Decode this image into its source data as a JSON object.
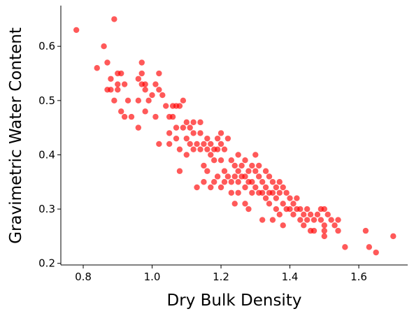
{
  "chart_data": {
    "type": "scatter",
    "x_label": "Dry Bulk Density",
    "y_label": "Gravimetric Water Content",
    "color": "#ff0000",
    "xlim": [
      0.735,
      1.742
    ],
    "ylim": [
      0.197,
      0.675
    ],
    "xticks": [
      {
        "value": 0.8,
        "label": "0.8"
      },
      {
        "value": 1.0,
        "label": "1.0"
      },
      {
        "value": 1.2,
        "label": "1.2"
      },
      {
        "value": 1.4,
        "label": "1.4"
      },
      {
        "value": 1.6,
        "label": "1.6"
      }
    ],
    "yticks": [
      0.2,
      0.3,
      0.4,
      0.5,
      0.6
    ],
    "x": [
      0.78,
      0.84,
      0.86,
      0.87,
      0.89,
      0.87,
      0.88,
      0.88,
      0.89,
      0.9,
      0.9,
      0.91,
      0.9,
      0.91,
      0.92,
      0.92,
      0.93,
      0.94,
      0.96,
      0.96,
      0.96,
      0.97,
      0.97,
      0.97,
      0.98,
      0.98,
      0.98,
      0.99,
      1.0,
      1.01,
      1.01,
      1.02,
      1.02,
      1.02,
      1.03,
      1.04,
      1.05,
      1.05,
      1.05,
      1.06,
      1.06,
      1.07,
      1.07,
      1.07,
      1.08,
      1.08,
      1.08,
      1.09,
      1.09,
      1.1,
      1.1,
      1.1,
      1.11,
      1.11,
      1.12,
      1.12,
      1.12,
      1.13,
      1.13,
      1.14,
      1.14,
      1.14,
      1.15,
      1.15,
      1.15,
      1.16,
      1.16,
      1.16,
      1.17,
      1.17,
      1.17,
      1.18,
      1.18,
      1.18,
      1.19,
      1.19,
      1.19,
      1.2,
      1.2,
      1.2,
      1.2,
      1.21,
      1.21,
      1.21,
      1.22,
      1.22,
      1.23,
      1.23,
      1.23,
      1.24,
      1.24,
      1.24,
      1.25,
      1.25,
      1.25,
      1.25,
      1.26,
      1.26,
      1.27,
      1.27,
      1.27,
      1.27,
      1.28,
      1.28,
      1.28,
      1.29,
      1.29,
      1.29,
      1.3,
      1.3,
      1.3,
      1.31,
      1.31,
      1.31,
      1.32,
      1.32,
      1.32,
      1.33,
      1.33,
      1.33,
      1.34,
      1.34,
      1.34,
      1.35,
      1.35,
      1.35,
      1.36,
      1.36,
      1.36,
      1.37,
      1.37,
      1.37,
      1.38,
      1.38,
      1.38,
      1.39,
      1.39,
      1.4,
      1.4,
      1.41,
      1.41,
      1.42,
      1.42,
      1.43,
      1.43,
      1.44,
      1.44,
      1.45,
      1.45,
      1.46,
      1.46,
      1.47,
      1.47,
      1.48,
      1.49,
      1.49,
      1.5,
      1.5,
      1.5,
      1.5,
      1.51,
      1.52,
      1.53,
      1.54,
      1.54,
      1.56,
      1.62,
      1.63,
      1.65,
      1.7
    ],
    "values": [
      0.63,
      0.56,
      0.6,
      0.57,
      0.65,
      0.52,
      0.54,
      0.52,
      0.5,
      0.55,
      0.53,
      0.55,
      0.52,
      0.48,
      0.47,
      0.53,
      0.5,
      0.47,
      0.5,
      0.45,
      0.54,
      0.57,
      0.55,
      0.53,
      0.53,
      0.48,
      0.52,
      0.5,
      0.51,
      0.47,
      0.53,
      0.55,
      0.52,
      0.42,
      0.51,
      0.49,
      0.47,
      0.44,
      0.42,
      0.49,
      0.47,
      0.49,
      0.45,
      0.43,
      0.49,
      0.41,
      0.37,
      0.5,
      0.45,
      0.46,
      0.43,
      0.4,
      0.45,
      0.42,
      0.46,
      0.44,
      0.41,
      0.42,
      0.34,
      0.46,
      0.44,
      0.41,
      0.42,
      0.38,
      0.35,
      0.43,
      0.41,
      0.37,
      0.42,
      0.4,
      0.34,
      0.41,
      0.39,
      0.35,
      0.43,
      0.41,
      0.36,
      0.44,
      0.42,
      0.39,
      0.34,
      0.41,
      0.37,
      0.35,
      0.43,
      0.36,
      0.39,
      0.35,
      0.33,
      0.38,
      0.36,
      0.31,
      0.4,
      0.37,
      0.35,
      0.33,
      0.38,
      0.36,
      0.39,
      0.36,
      0.34,
      0.31,
      0.37,
      0.35,
      0.3,
      0.38,
      0.35,
      0.33,
      0.4,
      0.37,
      0.34,
      0.38,
      0.36,
      0.33,
      0.35,
      0.33,
      0.28,
      0.37,
      0.34,
      0.32,
      0.36,
      0.33,
      0.31,
      0.35,
      0.33,
      0.28,
      0.34,
      0.32,
      0.3,
      0.35,
      0.33,
      0.29,
      0.34,
      0.31,
      0.27,
      0.33,
      0.3,
      0.32,
      0.3,
      0.31,
      0.29,
      0.32,
      0.3,
      0.3,
      0.28,
      0.29,
      0.27,
      0.3,
      0.28,
      0.29,
      0.26,
      0.28,
      0.26,
      0.29,
      0.3,
      0.28,
      0.3,
      0.27,
      0.26,
      0.25,
      0.29,
      0.28,
      0.27,
      0.28,
      0.26,
      0.23,
      0.26,
      0.23,
      0.22,
      0.25
    ]
  }
}
